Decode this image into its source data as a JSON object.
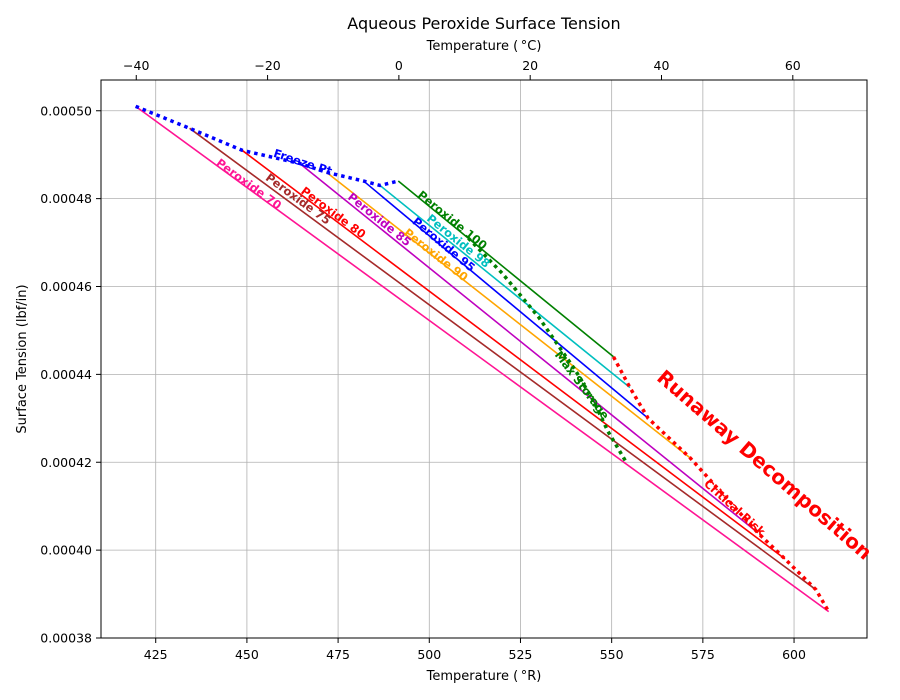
{
  "chart_data": {
    "type": "line",
    "title": "Aqueous Peroxide Surface Tension",
    "xlabel": "Temperature ($^\\circ$R)",
    "ylabel": "Surface Tension (lbf/in)",
    "x2label": "Temperature ($^\\circ$C)",
    "xlim": [
      410,
      620
    ],
    "ylim": [
      0.00038,
      0.000507
    ],
    "x2lim": [
      -45.37,
      71.3
    ],
    "xticks": [
      425,
      450,
      475,
      500,
      525,
      550,
      575,
      600
    ],
    "yticks": [
      "0.00038",
      "0.00040",
      "0.00042",
      "0.00044",
      "0.00046",
      "0.00048",
      "0.00050"
    ],
    "x2ticks": [
      -40,
      -20,
      0,
      20,
      40,
      60
    ],
    "grid": true,
    "series": [
      {
        "name": "Peroxide 70",
        "color": "#ff1493",
        "x": [
          419.5,
          609.5
        ],
        "y": [
          0.000501,
          0.000386
        ]
      },
      {
        "name": "Peroxide 75",
        "color": "#a52a2a",
        "x": [
          434.3,
          606.0
        ],
        "y": [
          0.000496,
          0.000391
        ]
      },
      {
        "name": "Peroxide 80",
        "color": "#ff0000",
        "x": [
          448.7,
          597.5
        ],
        "y": [
          0.000491,
          0.000398
        ]
      },
      {
        "name": "Peroxide 85",
        "color": "#bf00bf",
        "x": [
          464.5,
          590.0
        ],
        "y": [
          0.000488,
          0.000404
        ]
      },
      {
        "name": "Peroxide 90",
        "color": "#ffa500",
        "x": [
          471.8,
          571.5
        ],
        "y": [
          0.000486,
          0.000421
        ]
      },
      {
        "name": "Peroxide 95",
        "color": "#0000ff",
        "x": [
          482.0,
          560.0
        ],
        "y": [
          0.000484,
          0.00043
        ]
      },
      {
        "name": "Peroxide 98",
        "color": "#00bfbf",
        "x": [
          486.5,
          555.0
        ],
        "y": [
          0.000483,
          0.000437
        ]
      },
      {
        "name": "Peroxide 100",
        "color": "#008000",
        "x": [
          491.5,
          550.5
        ],
        "y": [
          0.000484,
          0.000444
        ]
      }
    ],
    "boundaries": [
      {
        "label": "Freeze Pt",
        "color": "#0000ff",
        "x": [
          419.5,
          434.3,
          448.7,
          464.5,
          471.8,
          482.0,
          486.5,
          491.5
        ],
        "y": [
          0.000501,
          0.000496,
          0.000491,
          0.000488,
          0.000486,
          0.000484,
          0.000483,
          0.000484
        ]
      },
      {
        "label": "Max Storage",
        "color": "#008000",
        "x": [
          510.7,
          520.0,
          530.0,
          540.0,
          545.0,
          549.0,
          554.0
        ],
        "y": [
          0.000471,
          0.000463,
          0.000453,
          0.000441,
          0.000434,
          0.000427,
          0.00042
        ]
      },
      {
        "label": "Critical Risk",
        "color": "#ff0000",
        "x": [
          550.5,
          555.0,
          560.0,
          571.5,
          590.0,
          597.5,
          606.0,
          609.5
        ],
        "y": [
          0.000444,
          0.000437,
          0.00043,
          0.000421,
          0.000404,
          0.000398,
          0.000391,
          0.000386
        ]
      }
    ],
    "annotations": [
      {
        "text": "Runaway Decomposition",
        "color": "#ff0000"
      }
    ]
  }
}
